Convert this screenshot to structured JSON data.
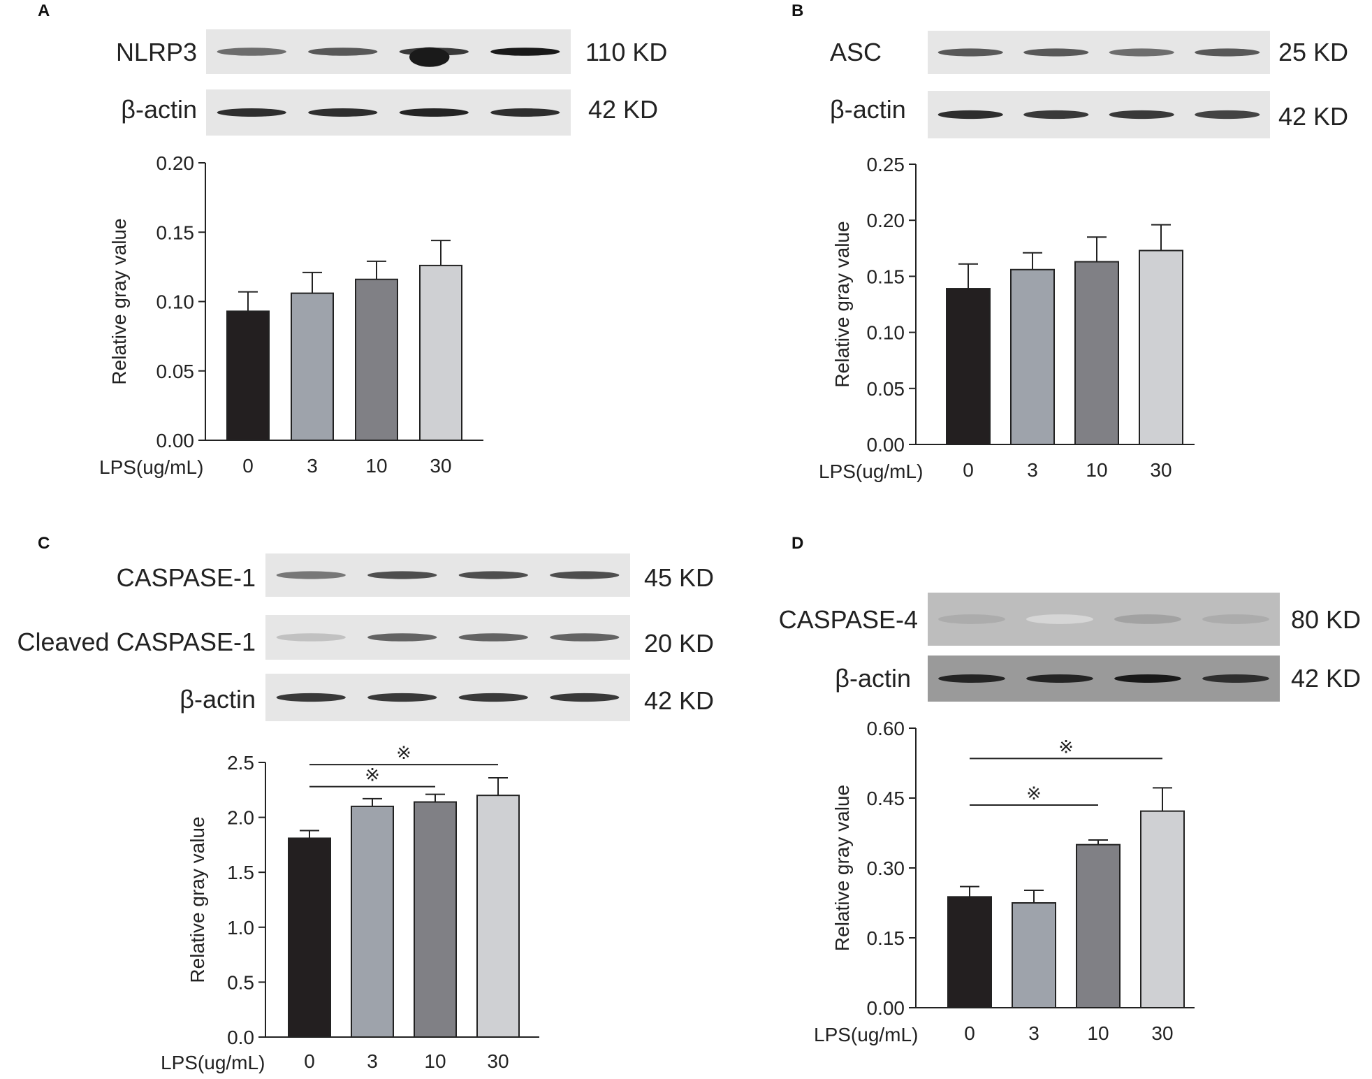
{
  "panels": [
    {
      "id": "A",
      "blots": [
        {
          "protein": "NLRP3",
          "kd": "110 KD",
          "tone": "light",
          "bands": [
            0.6,
            0.7,
            0.85,
            1.0
          ],
          "blob": 3
        },
        {
          "protein": "β-actin",
          "kd": "42 KD",
          "tone": "light",
          "bands": [
            0.9,
            0.9,
            0.95,
            0.9
          ]
        }
      ]
    },
    {
      "id": "B",
      "blots": [
        {
          "protein": "ASC",
          "kd": "25 KD",
          "tone": "light",
          "bands": [
            0.7,
            0.7,
            0.6,
            0.7
          ]
        },
        {
          "protein": "β-actin",
          "kd": "42 KD",
          "tone": "light",
          "bands": [
            0.9,
            0.85,
            0.85,
            0.8
          ]
        }
      ]
    },
    {
      "id": "C",
      "blots": [
        {
          "protein": "CASPASE-1",
          "kd": "45 KD",
          "tone": "light",
          "bands": [
            0.55,
            0.75,
            0.75,
            0.75
          ]
        },
        {
          "protein": "Cleaved CASPASE-1",
          "kd": "20 KD",
          "tone": "light",
          "bands": [
            0.2,
            0.65,
            0.65,
            0.65
          ]
        },
        {
          "protein": "β-actin",
          "kd": "42 KD",
          "tone": "light",
          "bands": [
            0.85,
            0.85,
            0.85,
            0.85
          ]
        }
      ]
    },
    {
      "id": "D",
      "blots": [
        {
          "protein": "CASPASE-4",
          "kd": "80 KD",
          "tone": "mid",
          "bands": [
            0.3,
            0.1,
            0.35,
            0.3
          ]
        },
        {
          "protein": "β-actin",
          "kd": "42 KD",
          "tone": "dark",
          "bands": [
            0.95,
            0.95,
            1.0,
            0.9
          ]
        }
      ]
    }
  ],
  "chart_data": [
    {
      "panel": "A",
      "type": "bar",
      "ylabel": "Relative gray value",
      "xlabel": "LPS(ug/mL)",
      "categories": [
        "0",
        "3",
        "10",
        "30"
      ],
      "values": [
        0.093,
        0.106,
        0.116,
        0.126
      ],
      "errors": [
        0.014,
        0.015,
        0.013,
        0.018
      ],
      "ylim": [
        0,
        0.2
      ],
      "yticks": [
        "0.00",
        "0.05",
        "0.10",
        "0.15",
        "0.20"
      ],
      "bar_colors": [
        "#231f20",
        "#9ea3ab",
        "#808085",
        "#cfd0d3"
      ],
      "significance": []
    },
    {
      "panel": "B",
      "type": "bar",
      "ylabel": "Relative gray value",
      "xlabel": "LPS(ug/mL)",
      "categories": [
        "0",
        "3",
        "10",
        "30"
      ],
      "values": [
        0.139,
        0.156,
        0.163,
        0.173
      ],
      "errors": [
        0.022,
        0.015,
        0.022,
        0.023
      ],
      "ylim": [
        0,
        0.25
      ],
      "yticks": [
        "0.00",
        "0.05",
        "0.10",
        "0.15",
        "0.20",
        "0.25"
      ],
      "bar_colors": [
        "#231f20",
        "#9ea3ab",
        "#808085",
        "#cfd0d3"
      ],
      "significance": []
    },
    {
      "panel": "C",
      "type": "bar",
      "ylabel": "Relative gray value",
      "xlabel": "LPS(ug/mL)",
      "categories": [
        "0",
        "3",
        "10",
        "30"
      ],
      "values": [
        1.81,
        2.1,
        2.14,
        2.2
      ],
      "errors": [
        0.07,
        0.07,
        0.07,
        0.16
      ],
      "ylim": [
        0,
        2.5
      ],
      "yticks": [
        "0.0",
        "0.5",
        "1.0",
        "1.5",
        "2.0",
        "2.5"
      ],
      "bar_colors": [
        "#231f20",
        "#9ea3ab",
        "#808085",
        "#cfd0d3"
      ],
      "significance": [
        {
          "from": 0,
          "to": 2,
          "y": 2.28,
          "mark": "※"
        },
        {
          "from": 0,
          "to": 3,
          "y": 2.48,
          "mark": "※"
        }
      ]
    },
    {
      "panel": "D",
      "type": "bar",
      "ylabel": "Relative gray value",
      "xlabel": "LPS(ug/mL)",
      "categories": [
        "0",
        "3",
        "10",
        "30"
      ],
      "values": [
        0.238,
        0.225,
        0.35,
        0.422
      ],
      "errors": [
        0.022,
        0.027,
        0.01,
        0.05
      ],
      "ylim": [
        0,
        0.6
      ],
      "yticks": [
        "0.00",
        "0.15",
        "0.30",
        "0.45",
        "0.60"
      ],
      "bar_colors": [
        "#231f20",
        "#9ea3ab",
        "#808085",
        "#cfd0d3"
      ],
      "significance": [
        {
          "from": 0,
          "to": 2,
          "y": 0.435,
          "mark": "※"
        },
        {
          "from": 0,
          "to": 3,
          "y": 0.535,
          "mark": "※"
        }
      ]
    }
  ]
}
